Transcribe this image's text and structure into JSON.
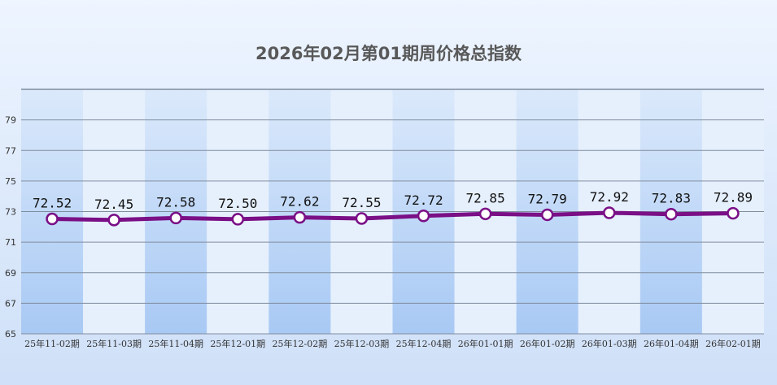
{
  "title": "2026年02月第01期周价格总指数",
  "chart_data": {
    "type": "line",
    "title": "2026年02月第01期周价格总指数",
    "categories": [
      "25年11-02期",
      "25年11-03期",
      "25年11-04期",
      "25年12-01期",
      "25年12-02期",
      "25年12-03期",
      "25年12-04期",
      "26年01-01期",
      "26年01-02期",
      "26年01-03期",
      "26年01-04期",
      "26年02-01期"
    ],
    "values": [
      72.52,
      72.45,
      72.58,
      72.5,
      72.62,
      72.55,
      72.72,
      72.85,
      72.79,
      72.92,
      72.83,
      72.89
    ],
    "value_labels": [
      "72.52",
      "72.45",
      "72.58",
      "72.50",
      "72.62",
      "72.55",
      "72.72",
      "72.85",
      "72.79",
      "72.92",
      "72.83",
      "72.89"
    ],
    "yticks": [
      65,
      67,
      69,
      71,
      73,
      75,
      77,
      79
    ],
    "ylim": [
      65,
      81
    ],
    "grid": true,
    "line_color": "#7a0f86",
    "marker_fill": "#ffffff",
    "band_dark": "#b6d2f7",
    "band_light": "#e6f0fd",
    "grid_color": "#7f8c9e",
    "xlabel": "",
    "ylabel": ""
  }
}
